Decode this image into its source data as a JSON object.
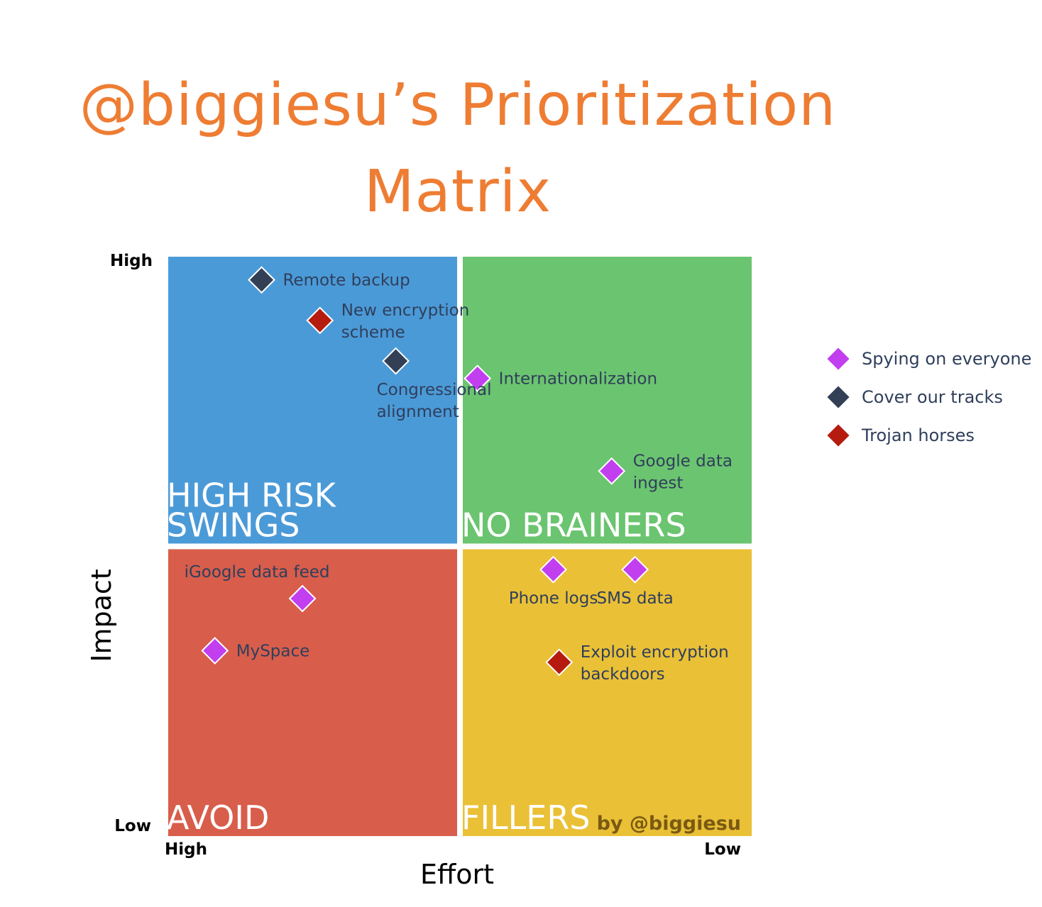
{
  "title": "@biggiesu’s Prioritization Matrix",
  "credit": "by @biggiesu",
  "colors": {
    "high_risk": "#4b9ad8",
    "no_brainers": "#6bc46f",
    "avoid": "#d85d4b",
    "fillers": "#eac036",
    "spying": "#c23ff0",
    "cover": "#323f55",
    "trojan": "#b51c0f"
  },
  "chart_data": {
    "type": "scatter",
    "xlabel": "Effort",
    "ylabel": "Impact",
    "x_ticks": {
      "high": "High",
      "low": "Low"
    },
    "y_ticks": {
      "high": "High",
      "low": "Low"
    },
    "xlim": [
      100,
      0
    ],
    "ylim": [
      0,
      100
    ],
    "quadrants": [
      {
        "key": "high_risk",
        "lines": [
          "HIGH RISK",
          "SWINGS"
        ],
        "position": "top-left"
      },
      {
        "key": "no_brainers",
        "lines": [
          "NO BRAINERS"
        ],
        "position": "top-right"
      },
      {
        "key": "avoid",
        "lines": [
          "AVOID"
        ],
        "position": "bottom-left"
      },
      {
        "key": "fillers",
        "lines": [
          "FILLERS"
        ],
        "position": "bottom-right"
      }
    ],
    "legend_position": "right",
    "series": [
      {
        "name": "Spying on everyone",
        "color_key": "spying",
        "points": [
          {
            "label": [
              "Internationalization"
            ],
            "x": 47,
            "y": 79,
            "label_side": "right"
          },
          {
            "label": [
              "Google data",
              "ingest"
            ],
            "x": 24,
            "y": 63,
            "label_side": "right"
          },
          {
            "label": [
              "iGoogle data feed"
            ],
            "x": 77,
            "y": 41,
            "label_side": "above"
          },
          {
            "label": [
              "MySpace"
            ],
            "x": 92,
            "y": 32,
            "label_side": "right"
          },
          {
            "label": [
              "Phone logs"
            ],
            "x": 34,
            "y": 46,
            "label_side": "below"
          },
          {
            "label": [
              "SMS data"
            ],
            "x": 20,
            "y": 46,
            "label_side": "below"
          }
        ]
      },
      {
        "name": "Cover our tracks",
        "color_key": "cover",
        "points": [
          {
            "label": [
              "Remote backup"
            ],
            "x": 84,
            "y": 96,
            "label_side": "right"
          },
          {
            "label": [
              "Congressional",
              "alignment"
            ],
            "x": 61,
            "y": 82,
            "label_side": "below"
          }
        ]
      },
      {
        "name": "Trojan horses",
        "color_key": "trojan",
        "points": [
          {
            "label": [
              "New encryption",
              "scheme"
            ],
            "x": 74,
            "y": 89,
            "label_side": "right"
          },
          {
            "label": [
              "Exploit encryption",
              "backdoors"
            ],
            "x": 33,
            "y": 30,
            "label_side": "right"
          }
        ]
      }
    ]
  }
}
